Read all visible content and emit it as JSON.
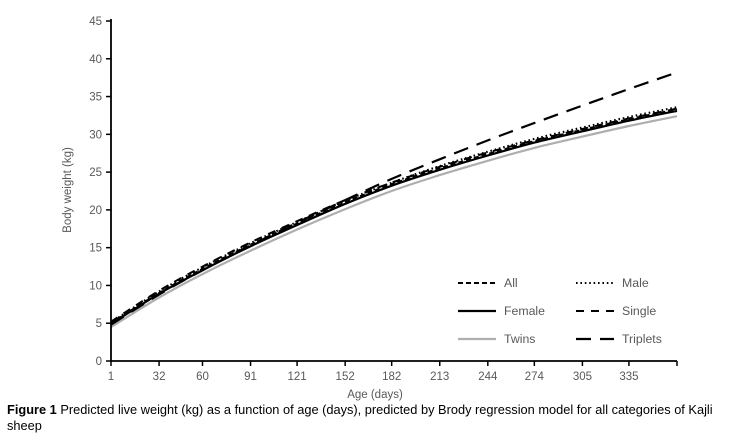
{
  "figure_caption": {
    "label": "Figure 1",
    "text": "Predicted live weight (kg) as a function of age (days), predicted by Brody regression model for all categories of Kajli sheep"
  },
  "chart_data": {
    "type": "line",
    "title": "",
    "xlabel": "Age (days)",
    "ylabel": "Body weight (kg)",
    "x_days": [
      1,
      32,
      60,
      91,
      121,
      152,
      182,
      213,
      244,
      274,
      305,
      335,
      366
    ],
    "x_tick_labels": [
      "1",
      "32",
      "60",
      "91",
      "121",
      "152",
      "182",
      "213",
      "244",
      "274",
      "305",
      "335"
    ],
    "xlim": [
      1,
      366
    ],
    "ylim": [
      0,
      45
    ],
    "y_ticks": [
      0,
      5,
      10,
      15,
      20,
      25,
      30,
      35,
      40,
      45
    ],
    "grid": false,
    "legend_position": "inside-lower-right-two-columns",
    "axis_color": "#000000",
    "tick_label_color": "#595959",
    "legend_text_color": "#595959",
    "series": [
      {
        "name": "All",
        "style": "dashed-short",
        "color": "#000000",
        "values": [
          5.0,
          9.0,
          12.2,
          15.4,
          18.2,
          21.0,
          23.4,
          25.5,
          27.4,
          29.1,
          30.6,
          32.0,
          33.3
        ]
      },
      {
        "name": "Male",
        "style": "dotted",
        "color": "#000000",
        "values": [
          5.1,
          9.2,
          12.4,
          15.6,
          18.4,
          21.2,
          23.6,
          25.8,
          27.7,
          29.4,
          30.9,
          32.3,
          33.6
        ]
      },
      {
        "name": "Female",
        "style": "solid",
        "color": "#000000",
        "values": [
          4.9,
          8.9,
          12.0,
          15.2,
          18.0,
          20.8,
          23.2,
          25.3,
          27.2,
          28.9,
          30.4,
          31.8,
          33.1
        ]
      },
      {
        "name": "Single",
        "style": "dashed-medium",
        "color": "#000000",
        "values": [
          5.2,
          9.3,
          12.5,
          15.7,
          18.5,
          21.3,
          23.6,
          25.7,
          27.6,
          29.2,
          30.7,
          32.1,
          33.4
        ]
      },
      {
        "name": "Twins",
        "style": "solid",
        "color": "#aeaeae",
        "values": [
          4.5,
          8.4,
          11.5,
          14.6,
          17.4,
          20.1,
          22.5,
          24.6,
          26.5,
          28.2,
          29.7,
          31.1,
          32.4
        ]
      },
      {
        "name": "Triplets",
        "style": "dashed-long",
        "color": "#000000",
        "values": [
          4.8,
          8.8,
          12.0,
          15.3,
          18.3,
          21.3,
          24.1,
          26.7,
          29.2,
          31.5,
          33.8,
          36.0,
          38.2
        ]
      }
    ]
  }
}
